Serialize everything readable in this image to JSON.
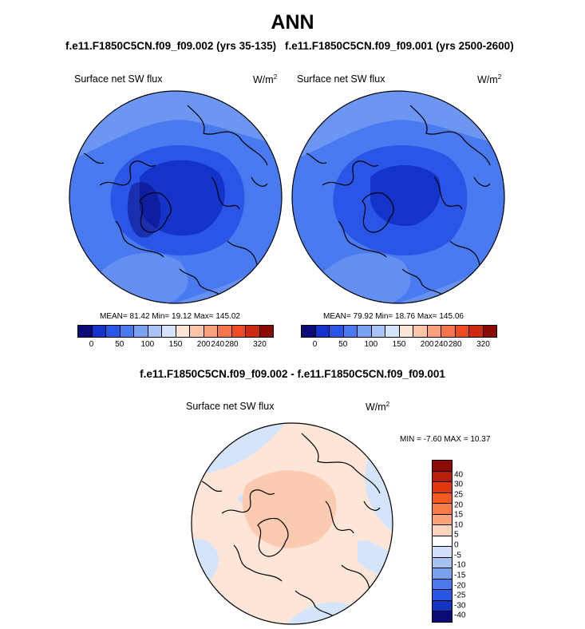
{
  "figure": {
    "title": "ANN",
    "left_case": "f.e11.F1850C5CN.f09_f09.002 (yrs 35-135)",
    "right_case": "f.e11.F1850C5CN.f09_f09.001 (yrs 2500-2600)",
    "diff_title": "f.e11.F1850C5CN.f09_f09.002 - f.e11.F1850C5CN.f09_f09.001"
  },
  "panels": {
    "left": {
      "variable": "Surface net SW flux",
      "units_base": "W/m",
      "units_exp": "2",
      "stats": "MEAN=  81.42  Min=  19.12  Max= 145.02"
    },
    "right": {
      "variable": "Surface net SW flux",
      "units_base": "W/m",
      "units_exp": "2",
      "stats": "MEAN=  79.92  Min=  18.76  Max= 145.06"
    },
    "diff": {
      "variable": "Surface net SW flux",
      "units_base": "W/m",
      "units_exp": "2",
      "stats": "MIN =  -7.60 MAX =  10.37"
    }
  },
  "colorbars": {
    "abs_colors": [
      "#0a0a78",
      "#1433c8",
      "#2a55e6",
      "#4a7af0",
      "#7aa0f4",
      "#a8c4f8",
      "#d4e4fb",
      "#fde6d8",
      "#fcc4a8",
      "#f9a07c",
      "#f5764c",
      "#ee4b24",
      "#cc2a10",
      "#8a0a06"
    ],
    "abs_ticks": [
      "0",
      "50",
      "100",
      "150",
      "200",
      "240",
      "280",
      "320"
    ],
    "diff_colors": [
      "#8a0a06",
      "#b81f0a",
      "#e0380e",
      "#f55a22",
      "#f87c48",
      "#fba276",
      "#fdd4bc",
      "#ffffff",
      "#cfe0f8",
      "#a6c1f2",
      "#7aa0f0",
      "#4a78ec",
      "#2a55e4",
      "#1433c0",
      "#0a0a78"
    ],
    "diff_ticks": [
      "40",
      "30",
      "25",
      "20",
      "15",
      "10",
      "5",
      "0",
      "-5",
      "-10",
      "-15",
      "-20",
      "-25",
      "-30",
      "-40"
    ]
  }
}
